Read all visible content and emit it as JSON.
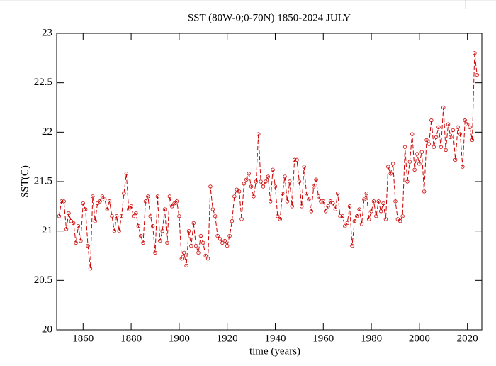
{
  "chart_data": {
    "type": "line",
    "title": "SST (80W-0;0-70N) 1850-2024 JULY",
    "x_label": "time (years)",
    "y_label": "SST(C)",
    "x": [
      1850,
      1851,
      1852,
      1853,
      1854,
      1855,
      1856,
      1857,
      1858,
      1859,
      1860,
      1861,
      1862,
      1863,
      1864,
      1865,
      1866,
      1867,
      1868,
      1869,
      1870,
      1871,
      1872,
      1873,
      1874,
      1875,
      1876,
      1877,
      1878,
      1879,
      1880,
      1881,
      1882,
      1883,
      1884,
      1885,
      1886,
      1887,
      1888,
      1889,
      1890,
      1891,
      1892,
      1893,
      1894,
      1895,
      1896,
      1897,
      1898,
      1899,
      1900,
      1901,
      1902,
      1903,
      1904,
      1905,
      1906,
      1907,
      1908,
      1909,
      1910,
      1911,
      1912,
      1913,
      1914,
      1915,
      1916,
      1917,
      1918,
      1919,
      1920,
      1921,
      1922,
      1923,
      1924,
      1925,
      1926,
      1927,
      1928,
      1929,
      1930,
      1931,
      1932,
      1933,
      1934,
      1935,
      1936,
      1937,
      1938,
      1939,
      1940,
      1941,
      1942,
      1943,
      1944,
      1945,
      1946,
      1947,
      1948,
      1949,
      1950,
      1951,
      1952,
      1953,
      1954,
      1955,
      1956,
      1957,
      1958,
      1959,
      1960,
      1961,
      1962,
      1963,
      1964,
      1965,
      1966,
      1967,
      1968,
      1969,
      1970,
      1971,
      1972,
      1973,
      1974,
      1975,
      1976,
      1977,
      1978,
      1979,
      1980,
      1981,
      1982,
      1983,
      1984,
      1985,
      1986,
      1987,
      1988,
      1989,
      1990,
      1991,
      1992,
      1993,
      1994,
      1995,
      1996,
      1997,
      1998,
      1999,
      2000,
      2001,
      2002,
      2003,
      2004,
      2005,
      2006,
      2007,
      2008,
      2009,
      2010,
      2011,
      2012,
      2013,
      2014,
      2015,
      2016,
      2017,
      2018,
      2019,
      2020,
      2021,
      2022,
      2023,
      2024
    ],
    "values": [
      21.15,
      21.3,
      21.3,
      21.02,
      21.18,
      21.1,
      21.08,
      20.88,
      21.05,
      20.9,
      21.28,
      21.22,
      20.85,
      20.62,
      21.35,
      21.1,
      21.28,
      21.3,
      21.35,
      21.32,
      21.22,
      21.3,
      21.15,
      21.0,
      21.15,
      21.0,
      21.15,
      21.38,
      21.58,
      21.22,
      21.25,
      21.15,
      21.18,
      21.05,
      20.95,
      20.88,
      21.3,
      21.35,
      21.15,
      21.05,
      20.78,
      21.35,
      20.9,
      21.0,
      21.22,
      20.88,
      21.35,
      21.25,
      21.28,
      21.3,
      21.15,
      20.72,
      20.78,
      20.65,
      21.0,
      20.85,
      21.08,
      20.85,
      20.78,
      20.95,
      20.88,
      20.75,
      20.72,
      21.45,
      21.22,
      21.15,
      20.95,
      20.92,
      20.88,
      20.9,
      20.85,
      20.95,
      21.1,
      21.35,
      21.42,
      21.4,
      21.12,
      21.48,
      21.52,
      21.58,
      21.45,
      21.35,
      21.5,
      21.98,
      21.5,
      21.45,
      21.5,
      21.55,
      21.3,
      21.62,
      21.45,
      21.15,
      21.12,
      21.38,
      21.55,
      21.3,
      21.5,
      21.25,
      21.72,
      21.72,
      21.5,
      21.25,
      21.65,
      21.38,
      21.32,
      21.2,
      21.45,
      21.52,
      21.35,
      21.3,
      21.3,
      21.2,
      21.25,
      21.3,
      21.28,
      21.22,
      21.38,
      21.15,
      21.15,
      21.05,
      21.08,
      21.25,
      20.85,
      21.1,
      21.15,
      21.22,
      21.07,
      21.32,
      21.38,
      21.12,
      21.2,
      21.3,
      21.15,
      21.3,
      21.2,
      21.28,
      21.12,
      21.65,
      21.58,
      21.68,
      21.3,
      21.12,
      21.1,
      21.15,
      21.85,
      21.5,
      21.7,
      21.98,
      21.62,
      21.78,
      21.68,
      21.8,
      21.4,
      21.92,
      21.88,
      22.12,
      21.85,
      21.95,
      22.05,
      21.85,
      22.25,
      21.82,
      22.08,
      21.95,
      22.02,
      21.72,
      22.05,
      21.98,
      21.65,
      22.12,
      22.08,
      22.05,
      21.92,
      22.8,
      22.58
    ],
    "color": "#cc0000",
    "xlim": [
      1849,
      2026
    ],
    "xticks": [
      1860,
      1880,
      1900,
      1920,
      1940,
      1960,
      1980,
      2000,
      2020
    ],
    "ylim": [
      20,
      23
    ],
    "yticks": [
      20,
      20.5,
      21,
      21.5,
      22,
      22.5,
      23
    ],
    "grid": false
  }
}
